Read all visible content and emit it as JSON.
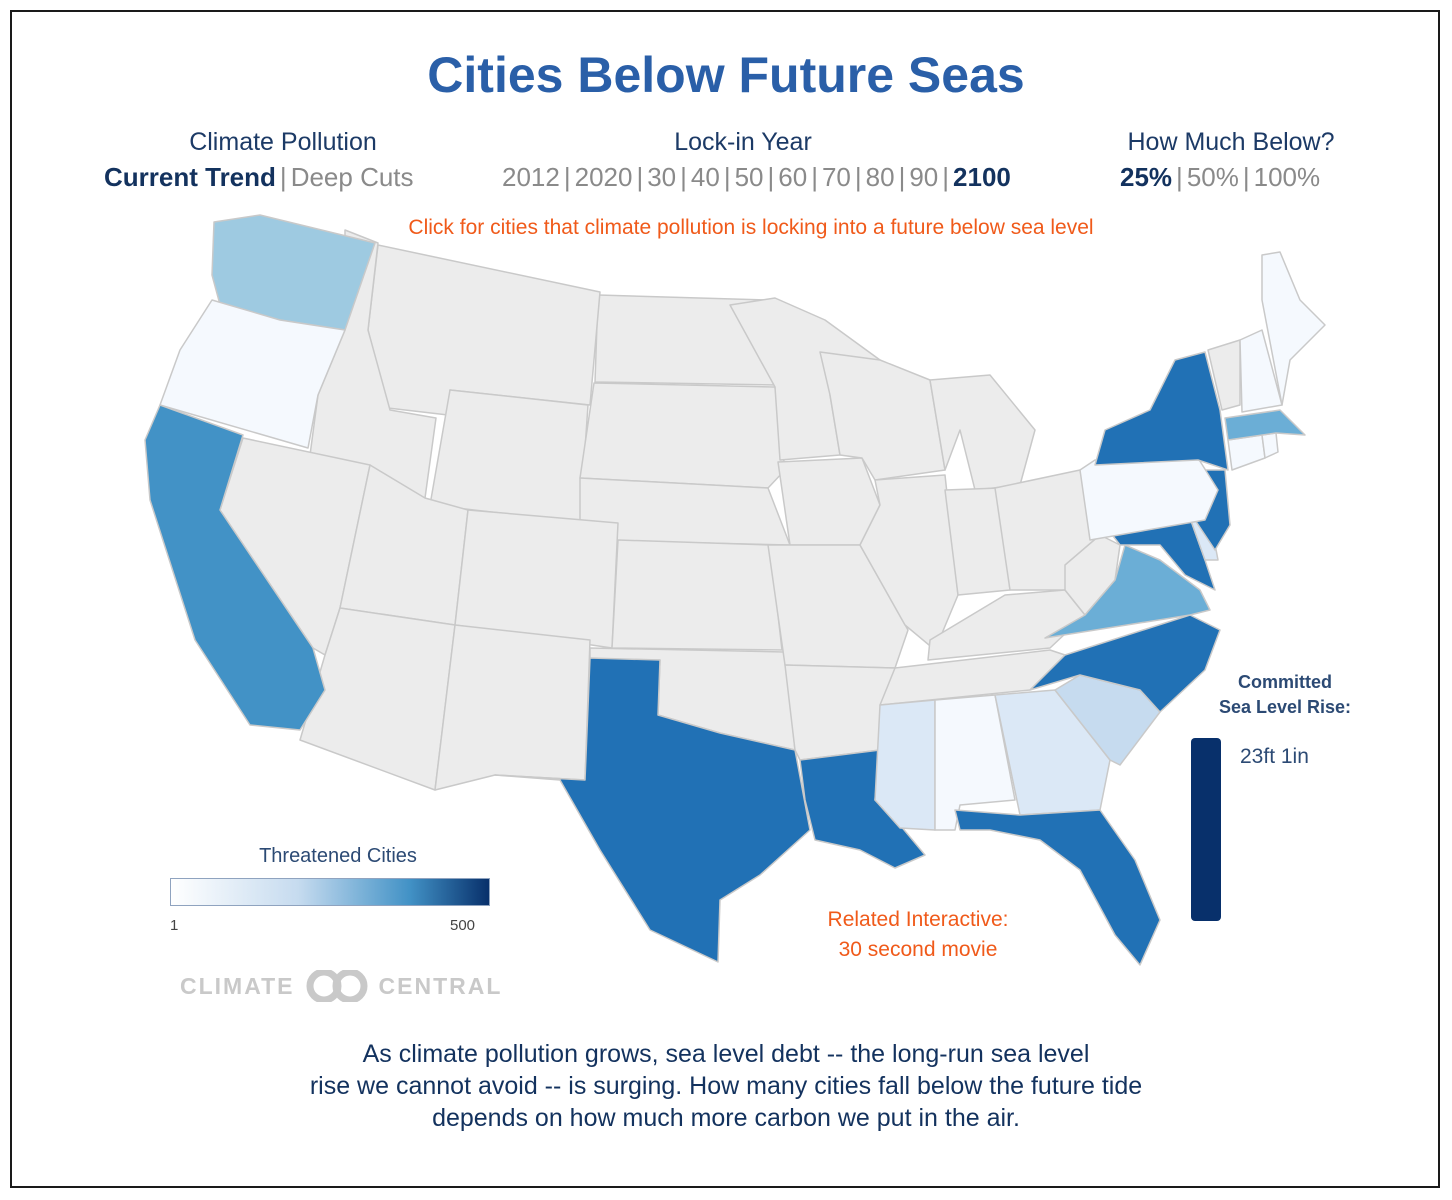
{
  "title": "Cities Below Future Seas",
  "controls": {
    "pollution": {
      "heading": "Climate Pollution",
      "options": [
        "Current Trend",
        "Deep Cuts"
      ],
      "selected": "Current Trend"
    },
    "lockin": {
      "heading": "Lock-in Year",
      "options": [
        "2012",
        "2020",
        "30",
        "40",
        "50",
        "60",
        "70",
        "80",
        "90",
        "2100"
      ],
      "selected": "2100"
    },
    "below": {
      "heading": "How Much Below?",
      "options": [
        "25%",
        "50%",
        "100%"
      ],
      "selected": "25%"
    }
  },
  "hint": "Click for cities that climate pollution is locking into a future below sea level",
  "legend": {
    "title": "Threatened Cities",
    "min_label": "1",
    "max_label": "500",
    "color_low": "#ffffff",
    "color_high": "#08306b"
  },
  "colors": {
    "none": "#ececec",
    "very_low": "#f5f9fe",
    "low": "#dbe8f6",
    "low_mid": "#c6dbef",
    "mid": "#9ecae1",
    "mid_high": "#6baed6",
    "high": "#4292c6",
    "very_high": "#2171b5"
  },
  "states": {
    "WA": "mid",
    "OR": "very_low",
    "CA": "high",
    "TX": "very_high",
    "LA": "very_high",
    "FL": "very_high",
    "MS": "low",
    "AL": "very_low",
    "GA": "low",
    "SC": "low_mid",
    "NC": "very_high",
    "VA": "mid_high",
    "MD": "very_high",
    "DE": "low",
    "NJ": "very_high",
    "PA": "very_low",
    "NY": "very_high",
    "CT": "very_low",
    "RI": "very_low",
    "MA": "mid_high",
    "NH": "very_low",
    "ME": "very_low"
  },
  "committed_rise": {
    "title_line1": "Committed",
    "title_line2": "Sea Level Rise:",
    "value": "23ft 1in",
    "color": "#08306b"
  },
  "related": {
    "line1": "Related Interactive:",
    "line2": "30 second movie"
  },
  "logo": {
    "left": "CLIMATE",
    "right": "CENTRAL"
  },
  "caption": {
    "line1": "As climate pollution grows, sea level debt -- the long-run sea level",
    "line2": "rise we cannot avoid -- is surging. How many cities fall below the future tide",
    "line3": "depends on how much more carbon we put in the air."
  }
}
